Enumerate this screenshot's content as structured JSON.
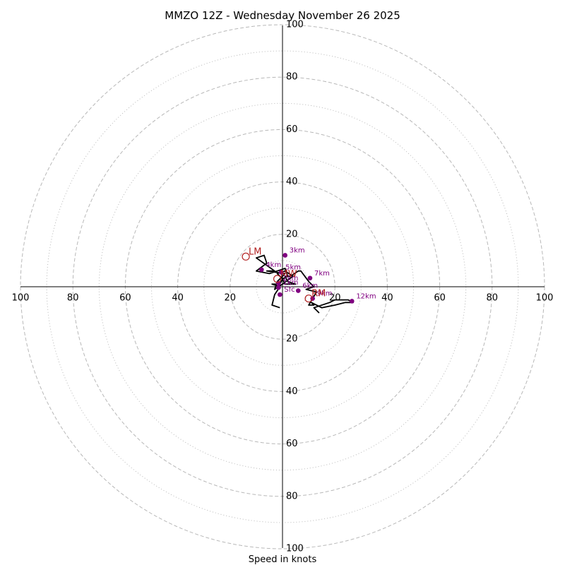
{
  "chart_data": {
    "type": "hodograph",
    "title": "MMZO 12Z - Wednesday November 26 2025",
    "xlabel": "Speed in knots",
    "rlim": [
      0,
      100
    ],
    "major_rings": [
      20,
      40,
      60,
      80,
      100
    ],
    "minor_rings": [
      10,
      30,
      50,
      70,
      90
    ],
    "tick_labels": {
      "top": [
        "20",
        "40",
        "60",
        "80",
        "100"
      ],
      "bottom": [
        "20",
        "40",
        "60",
        "80",
        "100"
      ],
      "left": [
        "20",
        "40",
        "60",
        "80",
        "100"
      ],
      "right": [
        "20",
        "40",
        "60",
        "80",
        "100"
      ]
    },
    "hodograph_trace": {
      "u": [
        -1,
        -4,
        -3,
        -1,
        -4,
        -1,
        0,
        -2,
        1,
        4,
        0,
        -3,
        -2,
        1,
        -6,
        -3,
        -10,
        -7,
        -6,
        -10,
        -5,
        1,
        2,
        0,
        1,
        5,
        2,
        1,
        3,
        6,
        7,
        10,
        12,
        9,
        13,
        10,
        12,
        11,
        15,
        20,
        24,
        27,
        25,
        20,
        18,
        12,
        13,
        14
      ],
      "v": [
        -8,
        -7,
        -3,
        0,
        1,
        1,
        3,
        5,
        6,
        4,
        1,
        -1,
        2,
        5,
        6,
        6,
        11,
        12,
        9,
        6,
        5,
        7,
        4,
        3,
        1,
        1,
        2,
        4,
        4,
        6,
        6,
        2,
        0,
        -1,
        -2,
        -7,
        -7,
        -6,
        -8,
        -7,
        -6,
        -6,
        -5,
        -5,
        -6,
        -8,
        -9,
        -10
      ]
    },
    "height_markers": [
      {
        "label": "Sfc",
        "u": -1,
        "v": -3
      },
      {
        "label": "1km",
        "u": -1.5,
        "v": -0.3
      },
      {
        "label": "2km",
        "u": -1.5,
        "v": 1.3
      },
      {
        "label": "5km",
        "u": -0.5,
        "v": 5.5
      },
      {
        "label": "3km",
        "u": 1,
        "v": 12
      },
      {
        "label": "4km",
        "u": -8,
        "v": 6.5
      },
      {
        "label": "6km",
        "u": 6,
        "v": -1.5
      },
      {
        "label": "7km",
        "u": 10.5,
        "v": 3.3
      },
      {
        "label": "9km",
        "u": 11.5,
        "v": -4.5
      },
      {
        "label": "12km",
        "u": 26.5,
        "v": -5.5
      }
    ],
    "storm_motions": [
      {
        "label": "LM",
        "u": -14,
        "v": 11.5
      },
      {
        "label": "MW",
        "u": -2,
        "v": 3
      },
      {
        "label": "RM",
        "u": 10,
        "v": -4.5
      }
    ],
    "colors": {
      "trace": "#000000",
      "marker": "#800080",
      "marker_label": "#800080",
      "storm_motion": "#b22222",
      "grid": "#b8b8b8",
      "axis": "#000000"
    }
  }
}
